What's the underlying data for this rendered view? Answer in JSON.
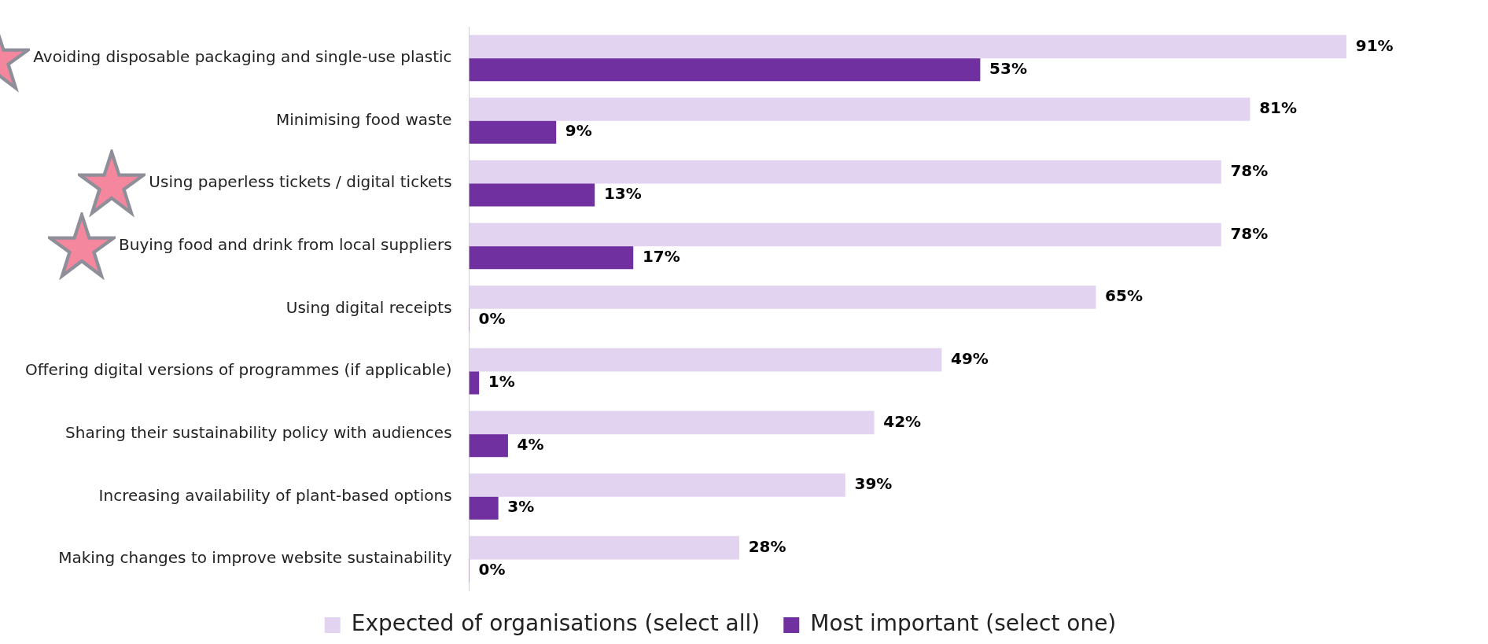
{
  "chart_data": {
    "type": "bar",
    "orientation": "horizontal",
    "categories": [
      "Avoiding disposable packaging and single-use plastic",
      "Minimising food waste",
      "Using paperless tickets / digital tickets",
      "Buying food and drink from local suppliers",
      "Using digital receipts",
      "Offering digital versions of programmes (if applicable)",
      "Sharing their sustainability policy with audiences",
      "Increasing availability of plant-based options",
      "Making changes to improve website sustainability"
    ],
    "series": [
      {
        "name": "Expected of organisations (select all)",
        "color": "#e2d3f0",
        "values": [
          91,
          81,
          78,
          78,
          65,
          49,
          42,
          39,
          28
        ],
        "value_labels": [
          "91%",
          "81%",
          "78%",
          "78%",
          "65%",
          "49%",
          "42%",
          "39%",
          "28%"
        ]
      },
      {
        "name": "Most important (select one)",
        "color": "#7030a0",
        "values": [
          53,
          9,
          13,
          17,
          0,
          1,
          4,
          3,
          0
        ],
        "value_labels": [
          "53%",
          "9%",
          "13%",
          "17%",
          "0%",
          "1%",
          "4%",
          "3%",
          "0%"
        ]
      }
    ],
    "grid": false,
    "legend": "bottom",
    "tick_labels": "y"
  }
}
